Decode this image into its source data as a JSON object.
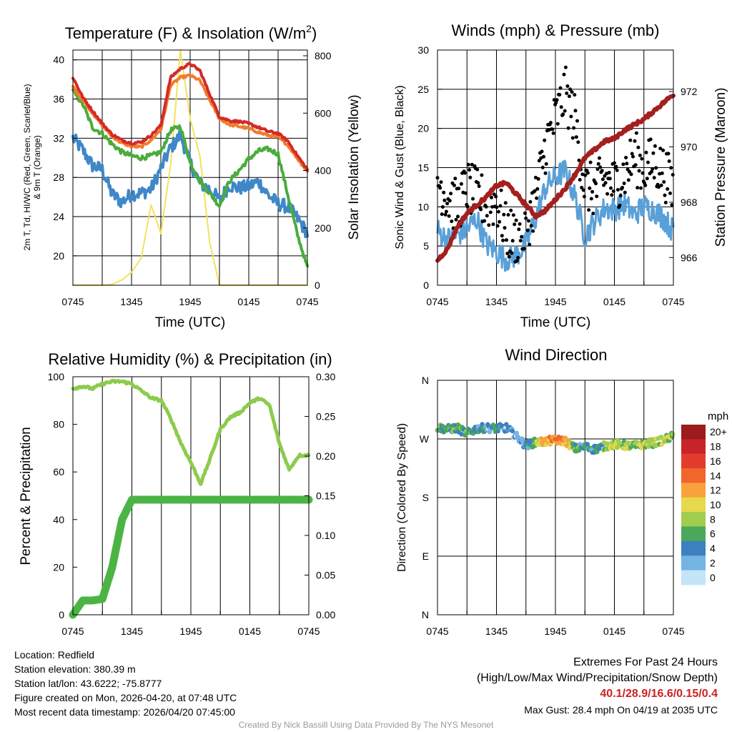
{
  "colors": {
    "red": "#d42a26",
    "orange": "#f07c2c",
    "green": "#4aac3c",
    "blue": "#3f87c8",
    "yellow": "#f4e25c",
    "maroon": "#a3201e",
    "light_blue": "#5aa0d8",
    "black": "#000000",
    "rh_green": "#8ccb4c",
    "precip_green": "#4cb444"
  },
  "chart_data": [
    {
      "id": "temperature",
      "type": "line",
      "title": "Temperature (F) & Insolation (W/m²)",
      "title_main": "Temperature (F) & Insolation (W/m",
      "title_sup": "2",
      "title_close": ")",
      "xlabel": "Time (UTC)",
      "ylabel_line1": "2m T, Td, HI/WC (Red, Green, Scarlet/Blue)",
      "ylabel_line2": "& 9m T (Orange)",
      "ylabel_right": "Solar Insolation (Yellow)",
      "xticks": [
        "0745",
        "1345",
        "1945",
        "0145",
        "0745"
      ],
      "ylim": [
        17,
        41
      ],
      "yticks": [
        20,
        24,
        28,
        32,
        36,
        40
      ],
      "ylim_right": [
        0,
        820
      ],
      "yticks_right": [
        0,
        200,
        400,
        600,
        800
      ],
      "x_hours": [
        0,
        1,
        2,
        3,
        4,
        5,
        6,
        7,
        8,
        9,
        10,
        11,
        12,
        13,
        14,
        15,
        16,
        17,
        18,
        19,
        20,
        21,
        22,
        23,
        24
      ],
      "series": [
        {
          "name": "2m T",
          "color": "red",
          "values": [
            38.2,
            36.2,
            34.8,
            33.5,
            32.4,
            31.8,
            31.5,
            31.6,
            32.3,
            33.3,
            38.2,
            39.1,
            39.6,
            38.9,
            36.5,
            34.2,
            33.8,
            33.7,
            33.5,
            33.1,
            32.7,
            32.5,
            31.7,
            30.2,
            28.8
          ]
        },
        {
          "name": "9m T",
          "color": "orange",
          "values": [
            37.3,
            35.9,
            34.6,
            33.3,
            32.2,
            31.5,
            31.2,
            31.1,
            31.8,
            32.9,
            37.4,
            38.2,
            38.4,
            37.9,
            35.9,
            34.0,
            33.4,
            33.2,
            33.0,
            32.6,
            32.3,
            32.1,
            31.3,
            29.9,
            28.6
          ]
        },
        {
          "name": "Td",
          "color": "green",
          "values": [
            36.8,
            35.5,
            33.1,
            32.5,
            31.4,
            30.6,
            30.2,
            30.0,
            30.2,
            30.6,
            32.8,
            33.2,
            29.5,
            27.6,
            26.4,
            25.1,
            27.6,
            28.7,
            29.9,
            30.7,
            30.9,
            30.4,
            26.2,
            22.1,
            18.8
          ]
        },
        {
          "name": "HI/WC",
          "color": "blue",
          "values": [
            32.0,
            30.8,
            29.2,
            28.8,
            26.3,
            25.5,
            26.3,
            26.4,
            26.8,
            28.9,
            31.0,
            32.3,
            29.5,
            27.4,
            26.8,
            25.7,
            27.2,
            26.9,
            27.1,
            27.6,
            26.2,
            25.3,
            25.0,
            23.8,
            22.3
          ]
        },
        {
          "name": "Solar Insolation",
          "color": "yellow",
          "axis": "right",
          "values": [
            0,
            0,
            0,
            0,
            3,
            18,
            45,
            95,
            280,
            180,
            420,
            820,
            580,
            450,
            150,
            0,
            0,
            0,
            0,
            0,
            0,
            0,
            0,
            0,
            0
          ]
        }
      ]
    },
    {
      "id": "winds",
      "type": "line",
      "title": "Winds (mph) & Pressure (mb)",
      "xlabel": "Time (UTC)",
      "ylabel": "Sonic Wind & Gust (Blue, Black)",
      "ylabel_right": "Station Pressure (Maroon)",
      "xticks": [
        "0745",
        "1345",
        "1945",
        "0145",
        "0745"
      ],
      "ylim": [
        0,
        30
      ],
      "yticks": [
        0,
        5,
        10,
        15,
        20,
        25,
        30
      ],
      "ylim_right": [
        965.0,
        973.5
      ],
      "yticks_right": [
        966,
        968,
        970,
        972
      ],
      "x_hours": [
        0,
        1,
        2,
        3,
        4,
        5,
        6,
        7,
        8,
        9,
        10,
        11,
        12,
        13,
        14,
        15,
        16,
        17,
        18,
        19,
        20,
        21,
        22,
        23,
        24
      ],
      "series": [
        {
          "name": "Sonic Wind",
          "color": "light_blue",
          "values": [
            7.0,
            5.8,
            6.4,
            7.2,
            8.5,
            5.2,
            4.3,
            3.3,
            3.8,
            5.2,
            8.6,
            12.5,
            13.8,
            14.6,
            11.2,
            6.2,
            8.2,
            9.8,
            9.7,
            10.4,
            9.0,
            10.1,
            9.6,
            8.6,
            6.9
          ]
        },
        {
          "name": "Wind Gust",
          "color": "black",
          "values": [
            13.5,
            11.2,
            10.0,
            12.5,
            11.5,
            10.3,
            10.8,
            6.8,
            6.0,
            7.2,
            11.3,
            17.8,
            21.2,
            24.5,
            21.0,
            12.5,
            12.1,
            13.5,
            12.8,
            14.2,
            16.4,
            14.9,
            15.7,
            14.5,
            12.3
          ]
        },
        {
          "name": "Station Pressure",
          "color": "maroon",
          "axis": "right",
          "values": [
            965.9,
            966.3,
            967.1,
            967.6,
            967.9,
            968.2,
            968.6,
            968.7,
            968.3,
            967.9,
            967.5,
            967.7,
            968.1,
            968.5,
            969.0,
            969.6,
            969.9,
            970.2,
            970.3,
            970.6,
            970.8,
            971.0,
            971.3,
            971.6,
            971.9
          ]
        }
      ]
    },
    {
      "id": "humidity",
      "type": "line",
      "title": "Relative Humidity (%) & Precipitation (in)",
      "ylabel": "Percent & Precipitation",
      "xticks": [
        "0745",
        "1345",
        "1945",
        "0145",
        "0745"
      ],
      "ylim": [
        0,
        100
      ],
      "yticks": [
        0,
        20,
        40,
        60,
        80,
        100
      ],
      "ylim_right": [
        0,
        0.3
      ],
      "yticks_right": [
        "0.00",
        "0.05",
        "0.10",
        "0.15",
        "0.20",
        "0.25",
        "0.30"
      ],
      "x_hours": [
        0,
        1,
        2,
        3,
        4,
        5,
        6,
        7,
        8,
        9,
        10,
        11,
        12,
        13,
        14,
        15,
        16,
        17,
        18,
        19,
        20,
        21,
        22,
        23,
        24
      ],
      "series": [
        {
          "name": "Relative Humidity",
          "color": "rh_green",
          "values": [
            95,
            96,
            95,
            97,
            98,
            98,
            97,
            94,
            91,
            90,
            82,
            72,
            64,
            55,
            66,
            78,
            83,
            85,
            89,
            91,
            88,
            72,
            61,
            67,
            67
          ]
        },
        {
          "name": "Precipitation",
          "color": "precip_green",
          "axis": "right",
          "values": [
            0.0,
            0.018,
            0.018,
            0.02,
            0.06,
            0.12,
            0.145,
            0.145,
            0.145,
            0.145,
            0.145,
            0.145,
            0.145,
            0.145,
            0.145,
            0.145,
            0.145,
            0.145,
            0.145,
            0.145,
            0.145,
            0.145,
            0.145,
            0.145,
            0.145
          ]
        }
      ]
    },
    {
      "id": "wind_direction",
      "type": "scatter",
      "title": "Wind Direction",
      "ylabel": "Direction (Colored By Speed)",
      "xticks": [
        "0745",
        "1345",
        "1945",
        "0145",
        "0745"
      ],
      "ylim": [
        0,
        360
      ],
      "yticks": [
        "N",
        "E",
        "S",
        "W",
        "N"
      ],
      "colorbar_title": "mph",
      "colorbar_labels": [
        "20+",
        "18",
        "16",
        "14",
        "12",
        "10",
        "8",
        "6",
        "4",
        "2",
        "0"
      ],
      "colorbar_colors": [
        "#9c1b1c",
        "#c8242a",
        "#e43c2c",
        "#f0662c",
        "#f8a23c",
        "#e8d84c",
        "#a0cc50",
        "#4aa85c",
        "#3c80c0",
        "#74b4e4",
        "#c4e4f8"
      ],
      "x_hours": [
        0,
        1,
        2,
        3,
        4,
        5,
        6,
        7,
        8,
        9,
        10,
        11,
        12,
        13,
        14,
        15,
        16,
        17,
        18,
        19,
        20,
        21,
        22,
        23,
        24
      ],
      "direction": [
        288,
        285,
        287,
        278,
        286,
        287,
        286,
        287,
        274,
        260,
        265,
        266,
        268,
        267,
        255,
        258,
        254,
        259,
        262,
        260,
        259,
        262,
        264,
        268,
        275
      ],
      "speed": [
        7,
        6,
        7,
        7,
        5,
        4,
        5,
        4,
        3,
        4,
        9,
        12,
        14,
        13,
        7,
        5,
        5,
        8,
        10,
        9,
        8,
        10,
        9,
        10,
        8
      ]
    }
  ],
  "meta": {
    "location": "Location: Redfield",
    "elevation": "Station elevation: 380.39 m",
    "latlon": "Station lat/lon: 43.6222; -75.8777",
    "created": "Figure created on Mon, 2026-04-20, at 07:48 UTC",
    "recent": "Most recent data timestamp: 2026/04/20 07:45:00"
  },
  "extremes": {
    "title": "Extremes For Past 24 Hours",
    "subtitle": "(High/Low/Max Wind/Precipitation/Snow Depth)",
    "values": "40.1/28.9/16.6/0.15/0.4",
    "gust": "Max Gust: 28.4 mph On 04/19 at 2035 UTC"
  },
  "credit": "Created By Nick Bassill Using Data Provided By The NYS Mesonet"
}
